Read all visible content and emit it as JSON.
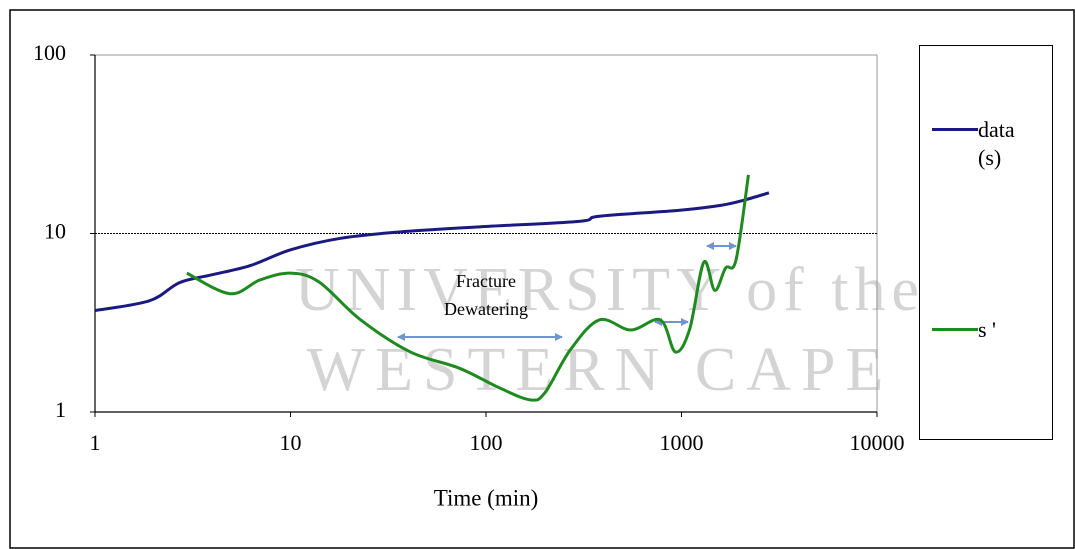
{
  "chart_data": {
    "type": "line",
    "xlabel": "Time (min)",
    "watermark": [
      "UNIVERSITY of the",
      "WESTERN CAPE"
    ],
    "annotation": [
      "Fracture",
      "Dewatering"
    ],
    "xscale": "log",
    "yscale": "log",
    "xlim": [
      1,
      10000
    ],
    "ylim": [
      1,
      100
    ],
    "xticks": [
      1,
      10,
      100,
      1000,
      10000
    ],
    "yticks": [
      1,
      10,
      100
    ],
    "grid": true,
    "legend": "right",
    "series": [
      {
        "name": "data (s)",
        "color": "#1a1a80",
        "x": [
          1,
          1.9,
          2.7,
          3.9,
          6.2,
          10,
          18,
          36,
          93,
          300,
          380,
          980,
          1600,
          2100,
          2800
        ],
        "values": [
          3.7,
          4.2,
          5.3,
          5.85,
          6.6,
          8.1,
          9.4,
          10.2,
          10.9,
          11.7,
          12.5,
          13.5,
          14.4,
          15.4,
          16.9
        ]
      },
      {
        "name": "s '",
        "color": "#1f8a1f",
        "x": [
          2.95,
          4.9,
          7,
          10,
          14,
          22.7,
          41,
          73,
          118,
          168,
          200,
          270,
          380,
          550,
          780,
          930,
          1100,
          1300,
          1480,
          1680,
          1900,
          2200
        ],
        "values": [
          6.0,
          4.6,
          5.5,
          6.0,
          5.35,
          3.3,
          2.17,
          1.76,
          1.36,
          1.17,
          1.28,
          2.23,
          3.28,
          2.88,
          3.28,
          2.17,
          2.9,
          6.9,
          4.8,
          6.4,
          7.1,
          21.3
        ]
      }
    ]
  }
}
